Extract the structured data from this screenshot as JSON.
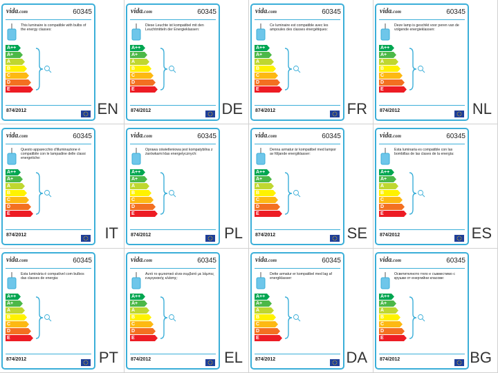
{
  "brand": "vida",
  "brand_suffix": ".com",
  "model": "60345",
  "regulation": "874/2012",
  "colors": {
    "frame": "#3aaed8",
    "bars": [
      "#00a651",
      "#4cb848",
      "#bfd730",
      "#fff200",
      "#fdb913",
      "#f37021",
      "#ed1c24"
    ]
  },
  "energy_classes": [
    "A++",
    "A+",
    "A",
    "B",
    "C",
    "D",
    "E"
  ],
  "icons": {
    "lamp": "pendant-lamp-icon",
    "bulb": "bulb-icon",
    "flag": "eu-flag-icon"
  },
  "labels": [
    {
      "lang": "EN",
      "text": "This luminaire is compatible with bulbs of the energy classes:"
    },
    {
      "lang": "DE",
      "text": "Diese Leuchte ist kompatibel mit den Leuchtmitteln der Energieklassen:"
    },
    {
      "lang": "FR",
      "text": "Ce luminaire est compatible avec les ampoules des classes énergétiques:"
    },
    {
      "lang": "NL",
      "text": "Deze lamp is geschikt voor peren van de volgende energieklassen:"
    },
    {
      "lang": "IT",
      "text": "Questo apparecchio d'illuminazione è compatibile con le lampadine delle classi energetiche:"
    },
    {
      "lang": "PL",
      "text": "Oprawa oświetleniowa jest kompatybilna z żarówkami klas energetycznych:"
    },
    {
      "lang": "SE",
      "text": "Denna armatur är kompatibel med lampor av följande energiklasser:"
    },
    {
      "lang": "ES",
      "text": "Esta luminaria es compatible con las bombillas de las clases de la energía:"
    },
    {
      "lang": "PT",
      "text": "Esta luminária é compatível com bulbos das classes de energia:"
    },
    {
      "lang": "EL",
      "text": "Αυτό το φωτιστικό είναι συμβατό με λάμπες ενεργειακής κλάσης:"
    },
    {
      "lang": "DA",
      "text": "Dette armatur er kompatibel med lag af energiklasser:"
    },
    {
      "lang": "BG",
      "text": "Осветителното тяло е съвместимо с крушки от енергийни класове:"
    }
  ]
}
